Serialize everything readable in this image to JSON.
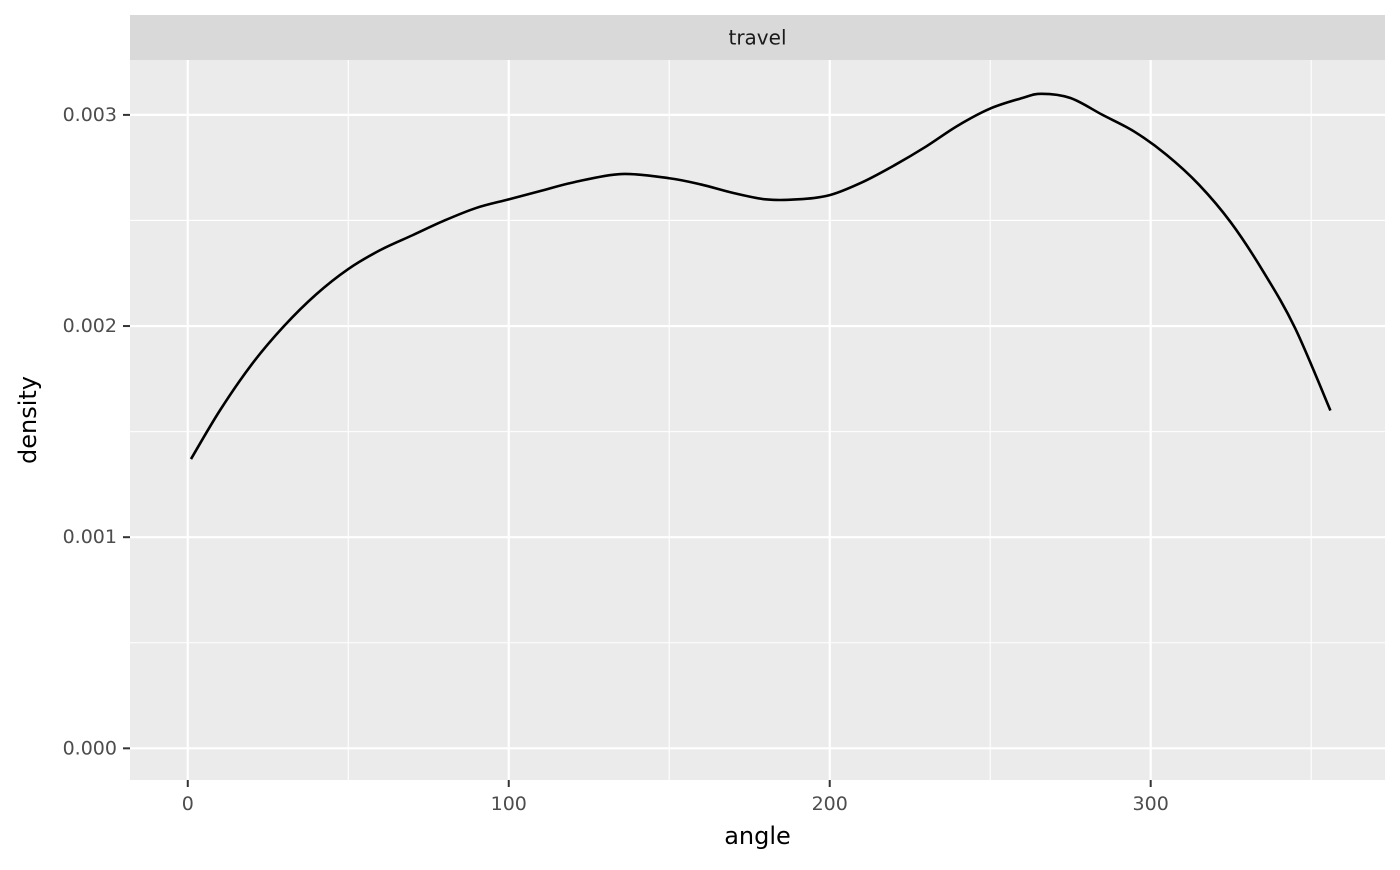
{
  "chart_data": {
    "type": "line",
    "facet_label": "travel",
    "xlabel": "angle",
    "ylabel": "density",
    "xlim": [
      -18,
      373
    ],
    "ylim": [
      -0.00015,
      0.00326
    ],
    "x_ticks": [
      0,
      100,
      200,
      300
    ],
    "x_tick_labels": [
      "0",
      "100",
      "200",
      "300"
    ],
    "x_minor_ticks": [
      50,
      150,
      250,
      350
    ],
    "y_ticks": [
      0.0,
      0.001,
      0.002,
      0.003
    ],
    "y_tick_labels": [
      "0.000",
      "0.001",
      "0.002",
      "0.003"
    ],
    "y_minor_ticks": [
      0.0005,
      0.0015,
      0.0025
    ],
    "grid": true,
    "series": [
      {
        "x": [
          1,
          10,
          20,
          30,
          40,
          50,
          60,
          70,
          80,
          90,
          100,
          110,
          120,
          135,
          150,
          160,
          170,
          180,
          190,
          200,
          210,
          220,
          230,
          240,
          250,
          260,
          266,
          275,
          285,
          295,
          305,
          315,
          325,
          335,
          345,
          356
        ],
        "y": [
          0.00137,
          0.0016,
          0.00182,
          0.002,
          0.00215,
          0.00227,
          0.00236,
          0.00243,
          0.0025,
          0.00256,
          0.0026,
          0.00264,
          0.00268,
          0.00272,
          0.0027,
          0.00267,
          0.00263,
          0.0026,
          0.0026,
          0.00262,
          0.00268,
          0.00276,
          0.00285,
          0.00295,
          0.00303,
          0.00308,
          0.0031,
          0.00308,
          0.003,
          0.00292,
          0.00281,
          0.00267,
          0.00249,
          0.00226,
          0.00199,
          0.0016
        ]
      }
    ],
    "colors": {
      "panel_bg": "#ebebeb",
      "strip_bg": "#d9d9d9",
      "grid_major": "#ffffff",
      "line": "#000000",
      "tick": "#333333"
    }
  }
}
